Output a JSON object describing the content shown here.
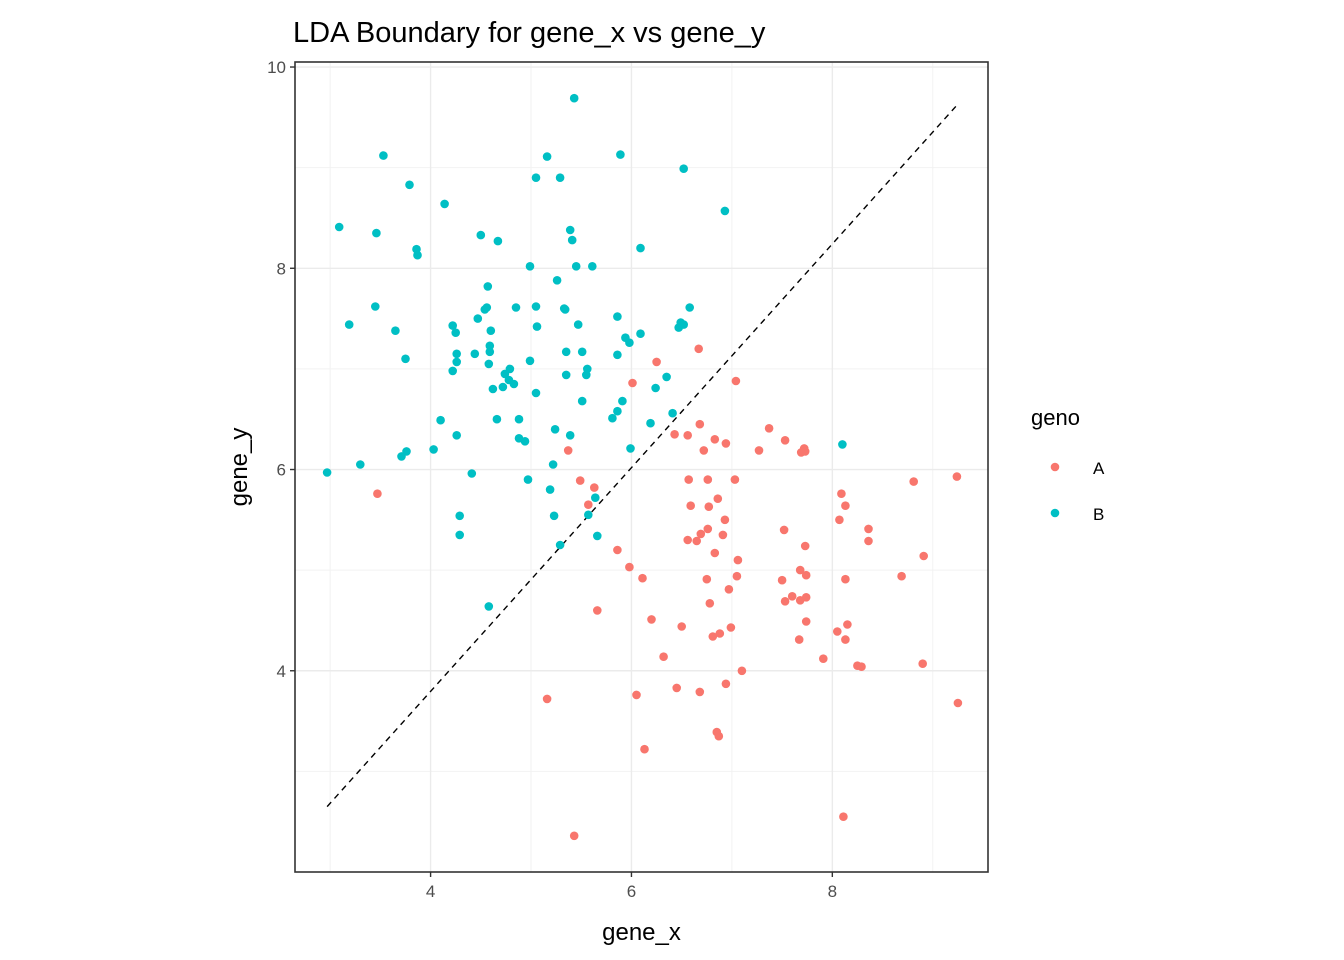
{
  "chart_data": {
    "type": "scatter",
    "title": "LDA Boundary for gene_x vs gene_y",
    "xlabel": "gene_x",
    "ylabel": "gene_y",
    "xlim": [
      2.65,
      9.55
    ],
    "ylim": [
      2.0,
      10.05
    ],
    "xticks": [
      4,
      6,
      8
    ],
    "yticks": [
      4,
      6,
      8,
      10
    ],
    "xtick_labels": [
      "4",
      "6",
      "8"
    ],
    "ytick_labels": [
      "4",
      "6",
      "8",
      "10"
    ],
    "grid": true,
    "legend": {
      "title": "geno",
      "position": "right",
      "entries": [
        "A",
        "B"
      ]
    },
    "boundary": {
      "style": "dashed",
      "color": "#000000",
      "x": [
        2.97,
        9.24
      ],
      "y": [
        2.65,
        9.62
      ]
    },
    "series": [
      {
        "name": "A",
        "color": "#F8766D",
        "points": [
          [
            3.47,
            5.76
          ],
          [
            5.37,
            6.19
          ],
          [
            5.49,
            5.89
          ],
          [
            5.63,
            5.82
          ],
          [
            5.57,
            5.65
          ],
          [
            5.66,
            4.6
          ],
          [
            5.16,
            3.72
          ],
          [
            5.43,
            2.36
          ],
          [
            5.86,
            5.2
          ],
          [
            5.98,
            5.03
          ],
          [
            6.11,
            4.92
          ],
          [
            6.2,
            4.51
          ],
          [
            6.32,
            4.14
          ],
          [
            6.05,
            3.76
          ],
          [
            6.13,
            3.22
          ],
          [
            6.01,
            6.86
          ],
          [
            6.25,
            7.07
          ],
          [
            6.43,
            6.35
          ],
          [
            6.56,
            6.34
          ],
          [
            6.57,
            5.9
          ],
          [
            6.59,
            5.64
          ],
          [
            6.56,
            5.3
          ],
          [
            6.65,
            5.29
          ],
          [
            6.69,
            5.36
          ],
          [
            6.67,
            7.2
          ],
          [
            6.68,
            6.45
          ],
          [
            6.83,
            6.3
          ],
          [
            6.72,
            6.19
          ],
          [
            6.94,
            6.26
          ],
          [
            6.76,
            5.9
          ],
          [
            6.77,
            5.63
          ],
          [
            6.76,
            5.41
          ],
          [
            6.86,
            5.71
          ],
          [
            6.93,
            5.5
          ],
          [
            6.91,
            5.35
          ],
          [
            6.83,
            5.17
          ],
          [
            7.03,
            5.9
          ],
          [
            7.04,
            6.88
          ],
          [
            7.06,
            5.1
          ],
          [
            7.05,
            4.94
          ],
          [
            6.75,
            4.91
          ],
          [
            6.78,
            4.67
          ],
          [
            6.88,
            4.37
          ],
          [
            6.81,
            4.34
          ],
          [
            6.99,
            4.43
          ],
          [
            6.97,
            4.81
          ],
          [
            6.5,
            4.44
          ],
          [
            6.45,
            3.83
          ],
          [
            6.68,
            3.79
          ],
          [
            6.94,
            3.87
          ],
          [
            7.1,
            4.0
          ],
          [
            6.85,
            3.39
          ],
          [
            6.87,
            3.35
          ],
          [
            7.27,
            6.19
          ],
          [
            7.37,
            6.41
          ],
          [
            7.53,
            6.29
          ],
          [
            7.72,
            6.21
          ],
          [
            7.73,
            6.18
          ],
          [
            7.69,
            6.17
          ],
          [
            7.52,
            5.4
          ],
          [
            7.73,
            5.24
          ],
          [
            7.68,
            5.0
          ],
          [
            7.74,
            4.95
          ],
          [
            7.5,
            4.9
          ],
          [
            7.53,
            4.69
          ],
          [
            7.6,
            4.74
          ],
          [
            7.68,
            4.7
          ],
          [
            7.74,
            4.73
          ],
          [
            7.74,
            4.49
          ],
          [
            7.67,
            4.31
          ],
          [
            7.91,
            4.12
          ],
          [
            8.09,
            5.76
          ],
          [
            8.13,
            5.64
          ],
          [
            8.07,
            5.5
          ],
          [
            8.13,
            4.91
          ],
          [
            8.05,
            4.39
          ],
          [
            8.15,
            4.46
          ],
          [
            8.13,
            4.31
          ],
          [
            8.25,
            4.05
          ],
          [
            8.29,
            4.04
          ],
          [
            8.36,
            5.41
          ],
          [
            8.36,
            5.29
          ],
          [
            8.69,
            4.94
          ],
          [
            8.81,
            5.88
          ],
          [
            8.91,
            5.14
          ],
          [
            8.9,
            4.07
          ],
          [
            9.24,
            5.93
          ],
          [
            9.25,
            3.68
          ],
          [
            8.11,
            2.55
          ]
        ]
      },
      {
        "name": "B",
        "color": "#00BFC4",
        "points": [
          [
            2.97,
            5.97
          ],
          [
            3.09,
            8.41
          ],
          [
            3.19,
            7.44
          ],
          [
            3.3,
            6.05
          ],
          [
            3.46,
            8.35
          ],
          [
            3.45,
            7.62
          ],
          [
            3.53,
            9.12
          ],
          [
            3.65,
            7.38
          ],
          [
            3.71,
            6.13
          ],
          [
            3.76,
            6.18
          ],
          [
            3.75,
            7.1
          ],
          [
            3.79,
            8.83
          ],
          [
            3.86,
            8.19
          ],
          [
            3.87,
            8.13
          ],
          [
            4.03,
            6.2
          ],
          [
            4.1,
            6.49
          ],
          [
            4.14,
            8.64
          ],
          [
            4.22,
            7.43
          ],
          [
            4.22,
            6.98
          ],
          [
            4.25,
            7.36
          ],
          [
            4.26,
            7.15
          ],
          [
            4.26,
            7.07
          ],
          [
            4.26,
            6.34
          ],
          [
            4.29,
            5.54
          ],
          [
            4.29,
            5.35
          ],
          [
            4.41,
            5.96
          ],
          [
            4.44,
            7.15
          ],
          [
            4.47,
            7.5
          ],
          [
            4.5,
            8.33
          ],
          [
            4.54,
            7.59
          ],
          [
            4.56,
            7.61
          ],
          [
            4.57,
            7.82
          ],
          [
            4.59,
            7.23
          ],
          [
            4.6,
            7.38
          ],
          [
            4.59,
            7.17
          ],
          [
            4.58,
            7.05
          ],
          [
            4.62,
            6.8
          ],
          [
            4.66,
            6.5
          ],
          [
            4.67,
            8.27
          ],
          [
            4.72,
            6.82
          ],
          [
            4.74,
            6.95
          ],
          [
            4.78,
            6.89
          ],
          [
            4.79,
            7.0
          ],
          [
            4.83,
            6.85
          ],
          [
            4.85,
            7.61
          ],
          [
            4.88,
            6.5
          ],
          [
            4.88,
            6.31
          ],
          [
            4.94,
            6.28
          ],
          [
            4.97,
            5.9
          ],
          [
            4.99,
            7.08
          ],
          [
            4.99,
            8.02
          ],
          [
            5.05,
            7.62
          ],
          [
            5.06,
            7.42
          ],
          [
            5.05,
            6.76
          ],
          [
            5.05,
            8.9
          ],
          [
            5.16,
            9.11
          ],
          [
            5.19,
            5.8
          ],
          [
            5.22,
            6.05
          ],
          [
            5.24,
            6.4
          ],
          [
            5.23,
            5.54
          ],
          [
            5.26,
            7.88
          ],
          [
            5.29,
            8.9
          ],
          [
            5.29,
            5.25
          ],
          [
            5.33,
            7.6
          ],
          [
            5.35,
            7.17
          ],
          [
            5.35,
            6.94
          ],
          [
            5.39,
            8.38
          ],
          [
            5.41,
            8.28
          ],
          [
            5.39,
            6.34
          ],
          [
            5.45,
            8.02
          ],
          [
            5.47,
            7.44
          ],
          [
            5.51,
            7.17
          ],
          [
            5.51,
            6.68
          ],
          [
            5.55,
            6.94
          ],
          [
            5.56,
            7.0
          ],
          [
            5.61,
            8.02
          ],
          [
            5.57,
            5.55
          ],
          [
            5.64,
            5.72
          ],
          [
            5.66,
            5.34
          ],
          [
            5.81,
            6.51
          ],
          [
            5.86,
            6.58
          ],
          [
            5.86,
            7.52
          ],
          [
            5.86,
            7.14
          ],
          [
            5.91,
            6.68
          ],
          [
            5.94,
            7.31
          ],
          [
            5.98,
            7.26
          ],
          [
            5.99,
            6.21
          ],
          [
            6.09,
            8.2
          ],
          [
            6.09,
            7.35
          ],
          [
            6.19,
            6.46
          ],
          [
            6.24,
            6.81
          ],
          [
            6.35,
            6.92
          ],
          [
            6.41,
            6.56
          ],
          [
            6.47,
            7.41
          ],
          [
            6.49,
            7.46
          ],
          [
            6.52,
            7.44
          ],
          [
            6.58,
            7.61
          ],
          [
            6.52,
            8.99
          ],
          [
            6.93,
            8.57
          ],
          [
            5.43,
            9.69
          ],
          [
            5.89,
            9.13
          ],
          [
            8.1,
            6.25
          ],
          [
            4.58,
            4.64
          ],
          [
            5.34,
            7.59
          ]
        ]
      }
    ]
  }
}
